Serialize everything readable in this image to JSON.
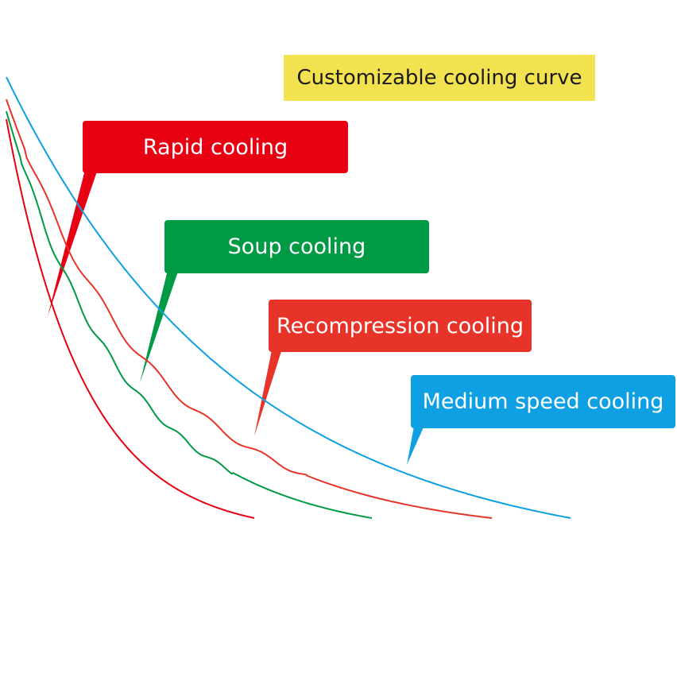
{
  "title": "Customizable cooling curve",
  "curves": [
    {
      "key": "rapid",
      "label": "Rapid cooling",
      "color": "#e60012"
    },
    {
      "key": "soup",
      "label": "Soup cooling",
      "color": "#009944"
    },
    {
      "key": "recompression",
      "label": "Recompression cooling",
      "color": "#e83428"
    },
    {
      "key": "medium",
      "label": "Medium speed cooling",
      "color": "#0ea0e3"
    }
  ]
}
